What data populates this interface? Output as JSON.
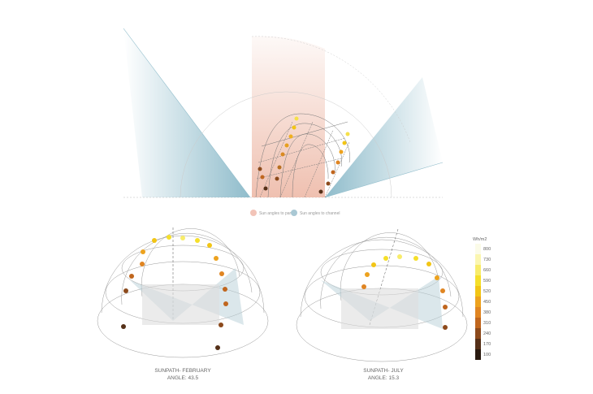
{
  "legend": {
    "panel": {
      "label": "Sun angles to panel",
      "color": "#f2c4b8"
    },
    "channel": {
      "label": "Sun angles to channel",
      "color": "#a9c8d4"
    }
  },
  "sunpaths": [
    {
      "title": "SUNPATH- FEBRUARY",
      "angle": "ANGLE: 43.5"
    },
    {
      "title": "SUNPATH- JULY",
      "angle": "ANGLE: 15.3"
    }
  ],
  "colorbar": {
    "unit": "Wh/m2",
    "ticks": [
      "800",
      "730",
      "660",
      "590",
      "520",
      "450",
      "380",
      "310",
      "240",
      "170",
      "100"
    ],
    "colors": [
      "#fbfbe8",
      "#fbf6b0",
      "#f8ec6a",
      "#f5df2a",
      "#f2c515",
      "#eda21e",
      "#e08522",
      "#c0661e",
      "#8c4a1c",
      "#553018",
      "#2a1a10"
    ]
  }
}
